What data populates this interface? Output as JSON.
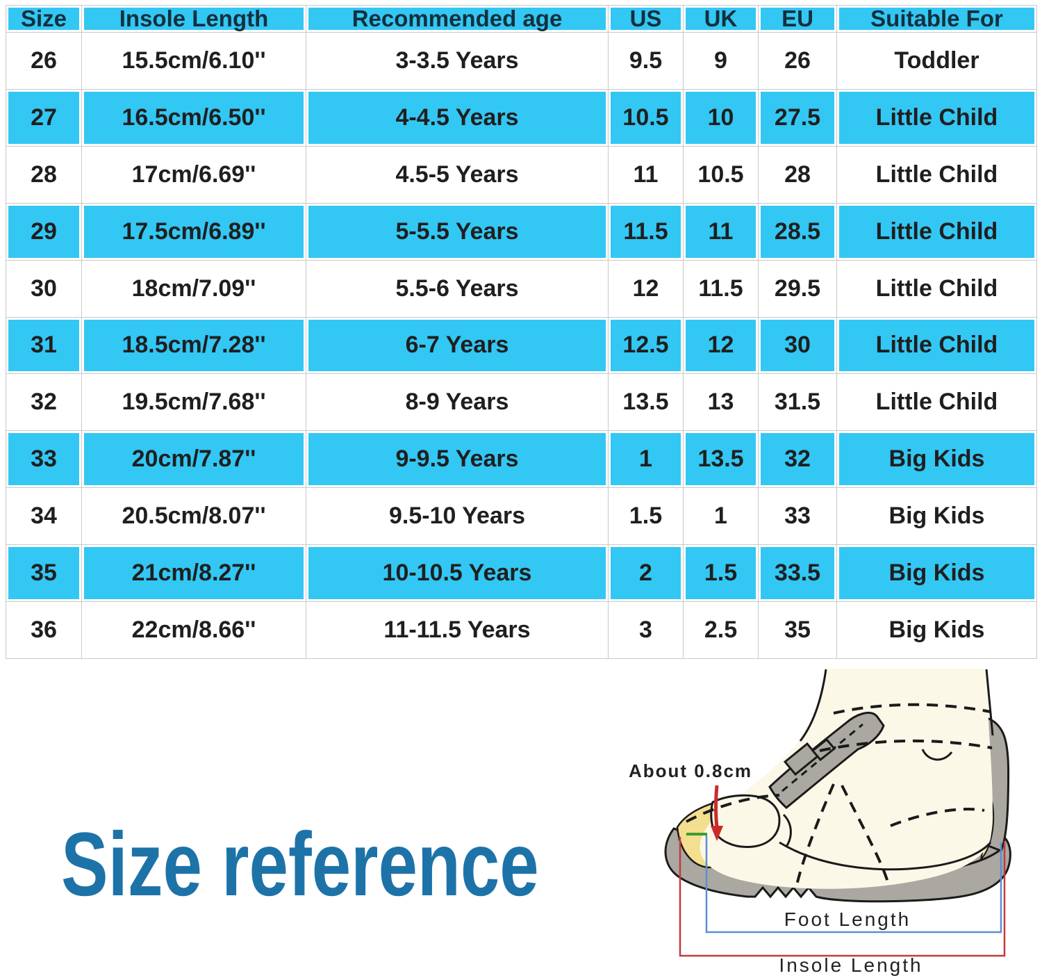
{
  "title": {
    "text": "Size reference"
  },
  "colors": {
    "cyan": "#33C7F4",
    "grid": "#C9C9C9",
    "header_text": "#14303C",
    "cell_text": "#1F1F1F",
    "title_blue": "#1D73A8",
    "insole_yellow": "#F4DE8F",
    "foot_cream": "#FBF8E8",
    "shoe_gray": "#ABA7A1",
    "outline_black": "#1A1A1A",
    "bracket_red": "#C23B3B",
    "bracket_blue": "#5B8FD0",
    "arrow_red": "#CC2A2A",
    "gap_green": "#3F9B2F"
  },
  "table": {
    "columns": [
      {
        "key": "size",
        "label": "Size"
      },
      {
        "key": "insole",
        "label": "Insole Length"
      },
      {
        "key": "age",
        "label": "Recommended age"
      },
      {
        "key": "us",
        "label": "US"
      },
      {
        "key": "uk",
        "label": "UK"
      },
      {
        "key": "eu",
        "label": "EU"
      },
      {
        "key": "suitable",
        "label": "Suitable For"
      }
    ],
    "rows": [
      {
        "size": "26",
        "insole": "15.5cm/6.10''",
        "age": "3-3.5 Years",
        "us": "9.5",
        "uk": "9",
        "eu": "26",
        "suitable": "Toddler"
      },
      {
        "size": "27",
        "insole": "16.5cm/6.50''",
        "age": "4-4.5 Years",
        "us": "10.5",
        "uk": "10",
        "eu": "27.5",
        "suitable": "Little Child"
      },
      {
        "size": "28",
        "insole": "17cm/6.69''",
        "age": "4.5-5 Years",
        "us": "11",
        "uk": "10.5",
        "eu": "28",
        "suitable": "Little Child"
      },
      {
        "size": "29",
        "insole": "17.5cm/6.89''",
        "age": "5-5.5 Years",
        "us": "11.5",
        "uk": "11",
        "eu": "28.5",
        "suitable": "Little Child"
      },
      {
        "size": "30",
        "insole": "18cm/7.09''",
        "age": "5.5-6 Years",
        "us": "12",
        "uk": "11.5",
        "eu": "29.5",
        "suitable": "Little Child"
      },
      {
        "size": "31",
        "insole": "18.5cm/7.28''",
        "age": "6-7 Years",
        "us": "12.5",
        "uk": "12",
        "eu": "30",
        "suitable": "Little Child"
      },
      {
        "size": "32",
        "insole": "19.5cm/7.68''",
        "age": "8-9 Years",
        "us": "13.5",
        "uk": "13",
        "eu": "31.5",
        "suitable": "Little Child"
      },
      {
        "size": "33",
        "insole": "20cm/7.87''",
        "age": "9-9.5 Years",
        "us": "1",
        "uk": "13.5",
        "eu": "32",
        "suitable": "Big Kids"
      },
      {
        "size": "34",
        "insole": "20.5cm/8.07''",
        "age": "9.5-10 Years",
        "us": "1.5",
        "uk": "1",
        "eu": "33",
        "suitable": "Big Kids"
      },
      {
        "size": "35",
        "insole": "21cm/8.27''",
        "age": "10-10.5 Years",
        "us": "2",
        "uk": "1.5",
        "eu": "33.5",
        "suitable": "Big Kids"
      },
      {
        "size": "36",
        "insole": "22cm/8.66''",
        "age": "11-11.5 Years",
        "us": "3",
        "uk": "2.5",
        "eu": "35",
        "suitable": "Big Kids"
      }
    ]
  },
  "illustration": {
    "gap_label": "About 0.8cm",
    "foot_length_label": "Foot Length",
    "insole_length_label": "Insole Length"
  }
}
